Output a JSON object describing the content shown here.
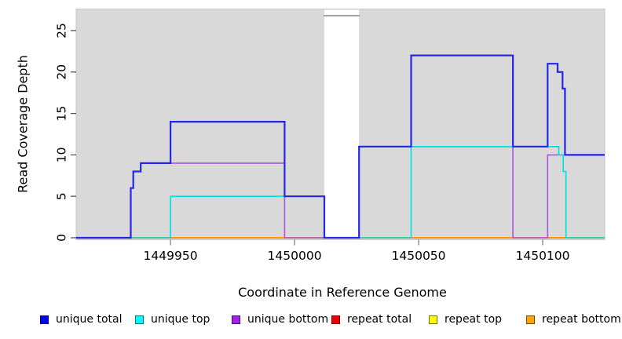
{
  "chart_data": {
    "type": "line",
    "variant": "step-coverage",
    "title": "",
    "xlabel": "Coordinate in Reference Genome",
    "ylabel": "Read Coverage Depth",
    "x_domain": [
      1449912,
      1450125
    ],
    "y_domain": [
      -0.24,
      27.6
    ],
    "x_tick_labels": [
      "1449950",
      "1450000",
      "1450050",
      "1450100"
    ],
    "x_tick_values": [
      1449950,
      1450000,
      1450050,
      1450100
    ],
    "y_tick_labels": [
      "0",
      "5",
      "10",
      "15",
      "20",
      "25"
    ],
    "y_tick_values": [
      0,
      5,
      10,
      15,
      20,
      25
    ],
    "panel": {
      "bg": "#d9d9d9",
      "border": "#c6c6c6"
    },
    "masked_region": {
      "from": 1450012,
      "to": 1450026,
      "fill": "#ffffff",
      "cap_value": 26.8,
      "cap_color": "#8f8f8f"
    },
    "series": [
      {
        "name": "repeat total",
        "color": "#e00000",
        "width": 1.4,
        "steps": [
          [
            1449912,
            0
          ],
          [
            1450125,
            0
          ]
        ]
      },
      {
        "name": "repeat top",
        "color": "#e8e800",
        "width": 1.4,
        "steps": [
          [
            1449912,
            0
          ],
          [
            1450125,
            0
          ]
        ]
      },
      {
        "name": "repeat bottom",
        "color": "#ff9800",
        "width": 2.0,
        "steps": [
          [
            1449912,
            0
          ],
          [
            1450125,
            0
          ]
        ]
      },
      {
        "name": "unique bottom",
        "color": "#a855e8",
        "width": 1.6,
        "steps": [
          [
            1449912,
            0
          ],
          [
            1449934,
            6
          ],
          [
            1449935,
            8
          ],
          [
            1449938,
            9
          ],
          [
            1449996,
            0
          ],
          [
            1450026,
            11
          ],
          [
            1450088,
            0
          ],
          [
            1450102,
            10
          ],
          [
            1450125,
            10
          ]
        ]
      },
      {
        "name": "unique top",
        "color": "#00dfdf",
        "width": 1.6,
        "steps": [
          [
            1449912,
            0
          ],
          [
            1449950,
            5
          ],
          [
            1450012,
            0
          ],
          [
            1450047,
            11
          ],
          [
            1450106.5,
            10
          ],
          [
            1450108.3,
            8
          ],
          [
            1450109.4,
            0
          ],
          [
            1450125,
            0
          ]
        ]
      },
      {
        "name": "unique total",
        "color": "#2626e6",
        "width": 2.2,
        "steps": [
          [
            1449912,
            0
          ],
          [
            1449934,
            6
          ],
          [
            1449935,
            8
          ],
          [
            1449938,
            9
          ],
          [
            1449950,
            14
          ],
          [
            1449996,
            5
          ],
          [
            1450012,
            0
          ],
          [
            1450026,
            11
          ],
          [
            1450047,
            22
          ],
          [
            1450088,
            11
          ],
          [
            1450102,
            21
          ],
          [
            1450106,
            20
          ],
          [
            1450108,
            18
          ],
          [
            1450109,
            10
          ],
          [
            1450125,
            10
          ]
        ]
      }
    ],
    "legend": [
      {
        "label": "unique total",
        "color": "#0000f0"
      },
      {
        "label": "unique top",
        "color": "#00ffff"
      },
      {
        "label": "unique bottom",
        "color": "#a020f0"
      },
      {
        "label": "repeat total",
        "color": "#ee0000"
      },
      {
        "label": "repeat top",
        "color": "#ffff00"
      },
      {
        "label": "repeat bottom",
        "color": "#ffa500"
      }
    ],
    "legend_position": "bottom",
    "grid": false
  }
}
